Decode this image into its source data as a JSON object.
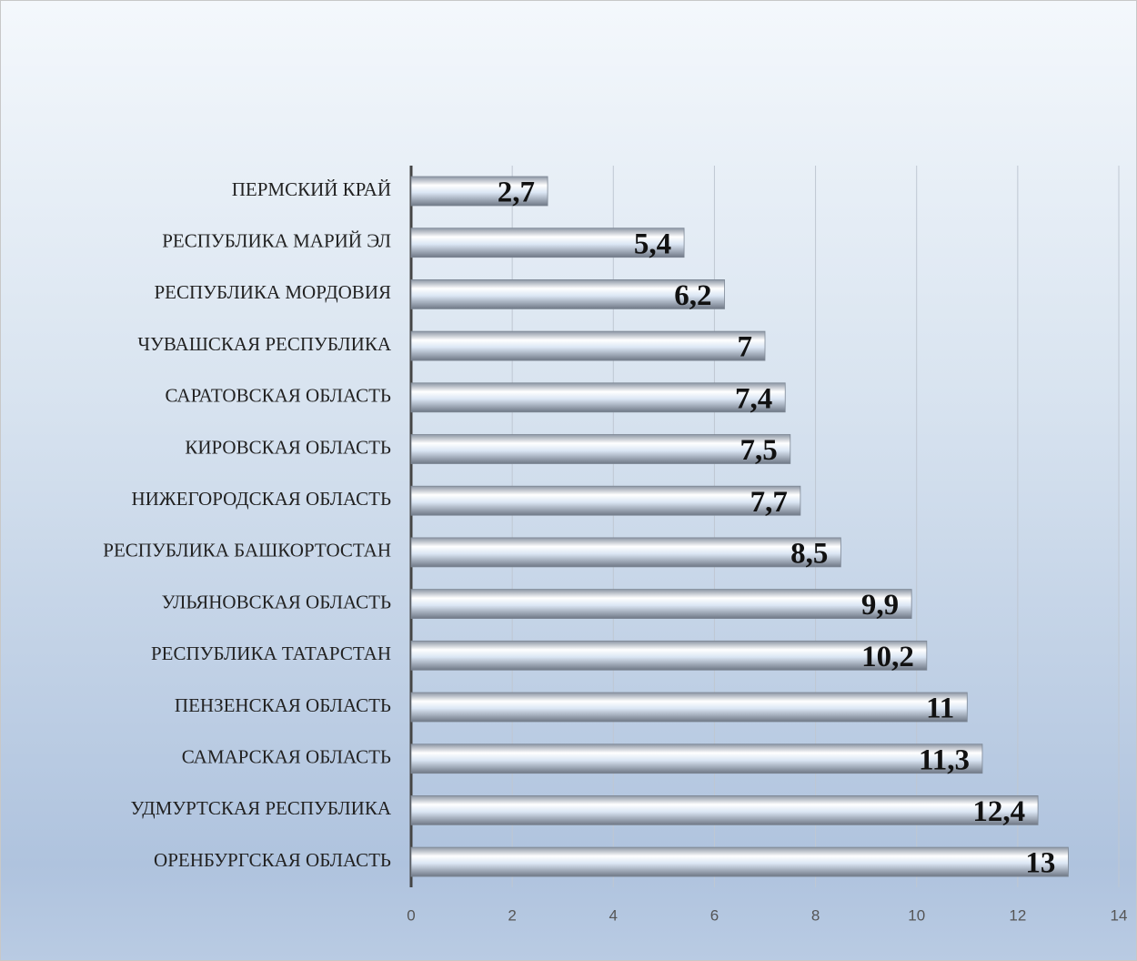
{
  "chart_data": {
    "type": "bar",
    "orientation": "horizontal",
    "categories": [
      "ПЕРМСКИЙ КРАЙ",
      "РЕСПУБЛИКА МАРИЙ ЭЛ",
      "РЕСПУБЛИКА МОРДОВИЯ",
      "ЧУВАШСКАЯ РЕСПУБЛИКА",
      "САРАТОВСКАЯ ОБЛАСТЬ",
      "КИРОВСКАЯ ОБЛАСТЬ",
      "НИЖЕГОРОДСКАЯ ОБЛАСТЬ",
      "РЕСПУБЛИКА БАШКОРТОСТАН",
      "УЛЬЯНОВСКАЯ ОБЛАСТЬ",
      "РЕСПУБЛИКА ТАТАРСТАН",
      "ПЕНЗЕНСКАЯ ОБЛАСТЬ",
      "САМАРСКАЯ ОБЛАСТЬ",
      "УДМУРТСКАЯ РЕСПУБЛИКА",
      "ОРЕНБУРГСКАЯ ОБЛАСТЬ"
    ],
    "values": [
      2.7,
      5.4,
      6.2,
      7,
      7.4,
      7.5,
      7.7,
      8.5,
      9.9,
      10.2,
      11,
      11.3,
      12.4,
      13
    ],
    "value_labels": [
      "2,7",
      "5,4",
      "6,2",
      "7",
      "7,4",
      "7,5",
      "7,7",
      "8,5",
      "9,9",
      "10,2",
      "11",
      "11,3",
      "12,4",
      "13"
    ],
    "color": "#dbe6f4",
    "xlim": [
      0,
      14
    ],
    "xticks": [
      0,
      2,
      4,
      6,
      8,
      10,
      12,
      14
    ],
    "grid": true
  }
}
